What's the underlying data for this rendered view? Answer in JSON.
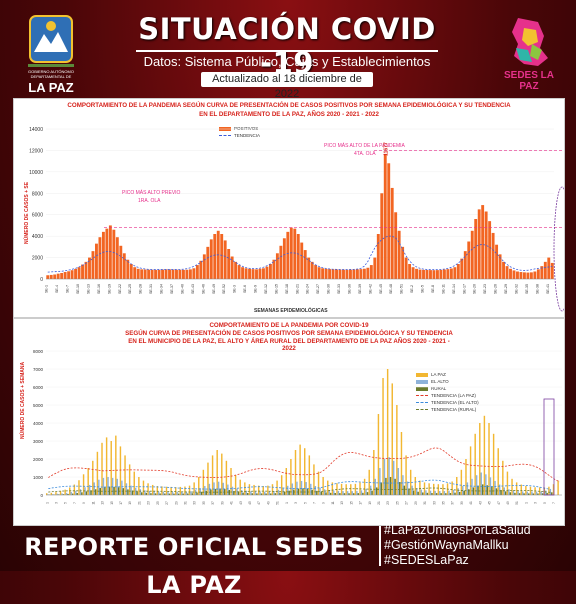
{
  "header": {
    "title": "SITUACIÓN COVID -19",
    "subtitle": "Datos: Sistema Público, Cajas y Establecimientos Privados",
    "updated": "Actualizado al 18 diciembre de 2022",
    "logo_left_text": "LA PAZ",
    "logo_right_text": "SEDES LA PAZ"
  },
  "footer": {
    "report": "REPORTE OFICIAL SEDES LA PAZ",
    "hashtags": [
      "#LaPazUnidosPorLaSalud",
      "#GestiónWaynaMallku",
      "#SEDESLaPaz"
    ]
  },
  "colors": {
    "bar": "#f26522",
    "trend": "#3b5bdb",
    "peakline": "#e62f8b",
    "lapaz": "#f2b731",
    "elalto": "#8fb3d9",
    "rural": "#6b7b2c"
  },
  "chart_data": [
    {
      "type": "bar",
      "title": "COMPORTAMIENTO DE LA PANDEMIA SEGÚN CURVA DE PRESENTACIÓN DE CASOS POSITIVOS POR SEMANA EPIDEMIOLÓGICA Y SU TENDENCIA",
      "subtitle": "EN EL DEPARTAMENTO DE LA PAZ, AÑOS 2020 - 2021 - 2022",
      "xlabel": "SEMANAS EPIDEMIOLÓGICAS",
      "ylabel": "NÚMERO DE CASOS + SE",
      "ylim": [
        0,
        14000
      ],
      "yticks": [
        0,
        2000,
        4000,
        6000,
        8000,
        10000,
        12000,
        14000
      ],
      "legend": [
        "POSITIVOS",
        "TENDENCIA"
      ],
      "annotations": [
        "PICO MÁS ALTO PREVIO",
        "1RA. OLA",
        "PICO MÁS ALTO DE LA PANDEMIA",
        "4TA. OLA",
        "11677",
        "6228"
      ],
      "reference_lines": [
        4800,
        12000
      ],
      "values": [
        350,
        380,
        420,
        500,
        560,
        650,
        720,
        820,
        940,
        1100,
        1350,
        1600,
        2000,
        2600,
        3300,
        3900,
        4400,
        4700,
        5000,
        4600,
        3900,
        3100,
        2400,
        1800,
        1400,
        1100,
        950,
        900,
        880,
        870,
        860,
        850,
        860,
        880,
        900,
        900,
        880,
        870,
        860,
        850,
        860,
        900,
        1000,
        1300,
        1700,
        2300,
        3000,
        3700,
        4200,
        4500,
        4200,
        3600,
        2800,
        2100,
        1600,
        1300,
        1100,
        1000,
        950,
        920,
        900,
        950,
        1000,
        1150,
        1400,
        1800,
        2400,
        3100,
        3800,
        4400,
        4800,
        4700,
        4200,
        3400,
        2700,
        2000,
        1600,
        1300,
        1100,
        1000,
        950,
        920,
        900,
        890,
        880,
        870,
        860,
        870,
        880,
        900,
        920,
        960,
        1050,
        1300,
        2000,
        4200,
        8000,
        11677,
        10800,
        8500,
        6228,
        4500,
        3000,
        2000,
        1400,
        1100,
        950,
        880,
        850,
        840,
        830,
        820,
        830,
        850,
        880,
        920,
        980,
        1100,
        1400,
        1900,
        2600,
        3500,
        4500,
        5600,
        6500,
        6900,
        6300,
        5400,
        4300,
        3200,
        2300,
        1600,
        1200,
        950,
        800,
        700,
        650,
        620,
        600,
        620,
        700,
        900,
        1200,
        1600,
        2000,
        1500
      ]
    },
    {
      "type": "bar",
      "title": "COMPORTAMIENTO DE LA PANDEMIA POR COVID-19",
      "subtitle": "SEGÚN CURVA DE PRESENTACIÓN DE CASOS POSITIVOS POR SEMANA EPIDEMIOLÓGICA Y SU TENDENCIA EN EL MUNICIPIO DE LA PAZ, EL ALTO Y ÁREA RURAL DEL DEPARTAMENTO DE LA PAZ AÑOS 2020 - 2021 - 2022",
      "ylabel": "NÚMERO DE CASOS + SEMANA",
      "ylim": [
        0,
        8000
      ],
      "yticks": [
        0,
        1000,
        2000,
        3000,
        4000,
        5000,
        6000,
        7000,
        8000
      ],
      "legend": [
        "LA PAZ",
        "EL ALTO",
        "RURAL",
        "TENDENCIA (LA PAZ)",
        "TENDENCIA (EL ALTO)",
        "TENDENCIA (RURAL)"
      ],
      "series": [
        {
          "name": "LA PAZ",
          "values": [
            100,
            120,
            160,
            220,
            300,
            420,
            580,
            820,
            1150,
            1500,
            1900,
            2400,
            2900,
            3200,
            3000,
            3300,
            2700,
            2200,
            1700,
            1300,
            1000,
            800,
            650,
            560,
            500,
            480,
            460,
            450,
            440,
            450,
            470,
            520,
            700,
            1000,
            1400,
            1800,
            2200,
            2500,
            2300,
            1900,
            1500,
            1100,
            850,
            700,
            600,
            560,
            520,
            500,
            520,
            600,
            800,
            1100,
            1500,
            2000,
            2500,
            2800,
            2600,
            2200,
            1700,
            1300,
            1000,
            800,
            700,
            650,
            620,
            600,
            600,
            620,
            700,
            900,
            1400,
            2500,
            4500,
            6500,
            7000,
            6200,
            5000,
            3500,
            2200,
            1400,
            1000,
            800,
            700,
            650,
            620,
            600,
            600,
            650,
            750,
            1000,
            1400,
            2000,
            2700,
            3400,
            4000,
            4400,
            4000,
            3400,
            2600,
            1900,
            1300,
            900,
            700,
            580,
            500,
            460,
            430,
            420,
            420,
            460,
            600,
            800
          ]
        },
        {
          "name": "EL ALTO",
          "values": [
            40,
            50,
            70,
            90,
            120,
            170,
            230,
            320,
            430,
            560,
            700,
            850,
            950,
            1000,
            950,
            900,
            800,
            650,
            520,
            400,
            320,
            260,
            220,
            200,
            190,
            180,
            175,
            170,
            170,
            175,
            185,
            210,
            280,
            380,
            500,
            620,
            700,
            740,
            680,
            580,
            460,
            350,
            280,
            240,
            210,
            200,
            190,
            185,
            190,
            220,
            290,
            390,
            510,
            640,
            740,
            780,
            720,
            620,
            500,
            400,
            320,
            270,
            240,
            230,
            220,
            215,
            215,
            225,
            260,
            340,
            520,
            900,
            1500,
            2000,
            2100,
            1900,
            1500,
            1100,
            750,
            520,
            380,
            300,
            260,
            240,
            230,
            220,
            220,
            240,
            280,
            370,
            500,
            700,
            900,
            1100,
            1250,
            1150,
            980,
            780,
            580,
            420,
            320,
            260,
            220,
            200,
            190,
            185,
            185,
            200,
            250,
            320
          ]
        },
        {
          "name": "RURAL",
          "values": [
            20,
            25,
            35,
            45,
            60,
            80,
            110,
            150,
            200,
            260,
            320,
            390,
            440,
            470,
            450,
            430,
            380,
            310,
            250,
            190,
            150,
            120,
            100,
            90,
            85,
            82,
            80,
            78,
            78,
            80,
            85,
            95,
            130,
            180,
            240,
            300,
            340,
            360,
            330,
            280,
            220,
            170,
            130,
            110,
            95,
            90,
            86,
            84,
            86,
            100,
            130,
            180,
            240,
            300,
            350,
            370,
            340,
            290,
            230,
            180,
            145,
            120,
            110,
            105,
            100,
            98,
            98,
            102,
            120,
            160,
            240,
            420,
            700,
            950,
            1000,
            900,
            720,
            520,
            360,
            250,
            180,
            140,
            120,
            110,
            105,
            100,
            100,
            110,
            130,
            170,
            230,
            320,
            420,
            520,
            590,
            540,
            460,
            370,
            280,
            200,
            150,
            120,
            100,
            92,
            88,
            85,
            85,
            92,
            115,
            150
          ]
        }
      ]
    }
  ]
}
